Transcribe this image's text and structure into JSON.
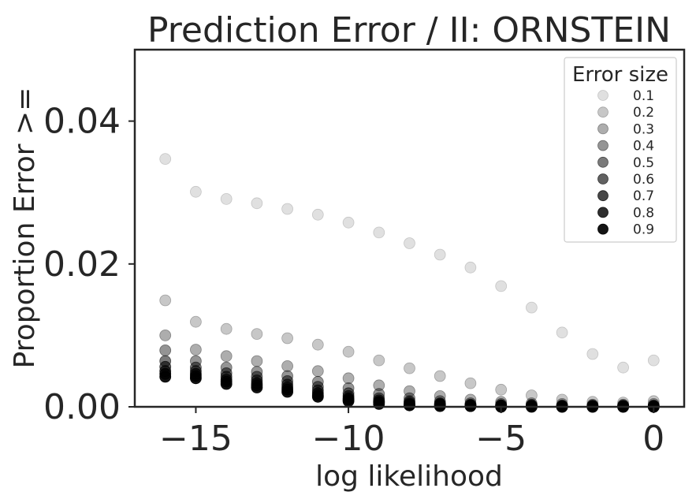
{
  "chart_data": {
    "type": "scatter",
    "title": "Prediction Error / II: ORNSTEIN",
    "xlabel": "log likelihood",
    "ylabel": "Proportion Error >=",
    "xlim": [
      -17,
      1
    ],
    "ylim": [
      0,
      0.05
    ],
    "xticks": [
      -15,
      -10,
      -5,
      0
    ],
    "xtick_labels": [
      "−15",
      "−10",
      "−5",
      "0"
    ],
    "yticks": [
      0,
      0.02,
      0.04
    ],
    "ytick_labels": [
      "0.00",
      "0.02",
      "0.04"
    ],
    "grid": false,
    "legend": {
      "title": "Error size",
      "placement": "top-right"
    },
    "x": [
      -16,
      -15,
      -14,
      -13,
      -12,
      -11,
      -10,
      -9,
      -8,
      -7,
      -6,
      -5,
      -4,
      -3,
      -2,
      -1,
      0
    ],
    "series": [
      {
        "name": "0.1",
        "color": "#000000",
        "opacity": 0.12,
        "values": [
          0.0347,
          0.0301,
          0.0291,
          0.0285,
          0.0277,
          0.0269,
          0.0258,
          0.0244,
          0.0229,
          0.0213,
          0.0195,
          0.0169,
          0.0139,
          0.0104,
          0.0074,
          0.0055,
          0.0065
        ]
      },
      {
        "name": "0.2",
        "color": "#000000",
        "opacity": 0.22,
        "values": [
          0.0149,
          0.0119,
          0.0109,
          0.0102,
          0.0096,
          0.0087,
          0.0077,
          0.0065,
          0.0054,
          0.0043,
          0.0033,
          0.0024,
          0.0016,
          0.001,
          0.0007,
          0.0006,
          0.0008
        ]
      },
      {
        "name": "0.3",
        "color": "#000000",
        "opacity": 0.32,
        "values": [
          0.01,
          0.008,
          0.0071,
          0.0064,
          0.0057,
          0.005,
          0.004,
          0.003,
          0.0022,
          0.0015,
          0.001,
          0.0007,
          0.0005,
          0.0004,
          0.0003,
          0.0003,
          0.0004
        ]
      },
      {
        "name": "0.4",
        "color": "#000000",
        "opacity": 0.42,
        "values": [
          0.0079,
          0.0064,
          0.0055,
          0.0049,
          0.0043,
          0.0035,
          0.0026,
          0.0018,
          0.0012,
          0.0008,
          0.0005,
          0.0004,
          0.0003,
          0.0002,
          0.0002,
          0.0002,
          0.0002
        ]
      },
      {
        "name": "0.5",
        "color": "#000000",
        "opacity": 0.52,
        "values": [
          0.0064,
          0.0055,
          0.0047,
          0.0042,
          0.0036,
          0.0028,
          0.0019,
          0.0012,
          0.0008,
          0.0005,
          0.0003,
          0.0002,
          0.0002,
          0.0001,
          0.0001,
          0.0001,
          0.0001
        ]
      },
      {
        "name": "0.6",
        "color": "#000000",
        "opacity": 0.62,
        "values": [
          0.0056,
          0.005,
          0.0042,
          0.0037,
          0.0031,
          0.0023,
          0.0015,
          0.0009,
          0.0006,
          0.0004,
          0.0002,
          0.0002,
          0.0001,
          0.0001,
          0.0001,
          0.0001,
          0.0001
        ]
      },
      {
        "name": "0.7",
        "color": "#000000",
        "opacity": 0.72,
        "values": [
          0.005,
          0.0046,
          0.0038,
          0.0033,
          0.0027,
          0.0019,
          0.0012,
          0.0007,
          0.0004,
          0.0003,
          0.0002,
          0.0001,
          0.0001,
          0.0001,
          0.0001,
          0.0001,
          0.0001
        ]
      },
      {
        "name": "0.8",
        "color": "#000000",
        "opacity": 0.82,
        "values": [
          0.0046,
          0.0043,
          0.0035,
          0.003,
          0.0024,
          0.0016,
          0.001,
          0.0006,
          0.0003,
          0.0002,
          0.0001,
          0.0001,
          0.0001,
          0.0,
          0.0,
          0.0,
          0.0
        ]
      },
      {
        "name": "0.9",
        "color": "#000000",
        "opacity": 0.92,
        "values": [
          0.0042,
          0.004,
          0.0032,
          0.0027,
          0.0021,
          0.0014,
          0.0008,
          0.0004,
          0.0002,
          0.0001,
          0.0001,
          0.0,
          0.0,
          0.0,
          0.0,
          0.0,
          0.0
        ]
      }
    ]
  }
}
